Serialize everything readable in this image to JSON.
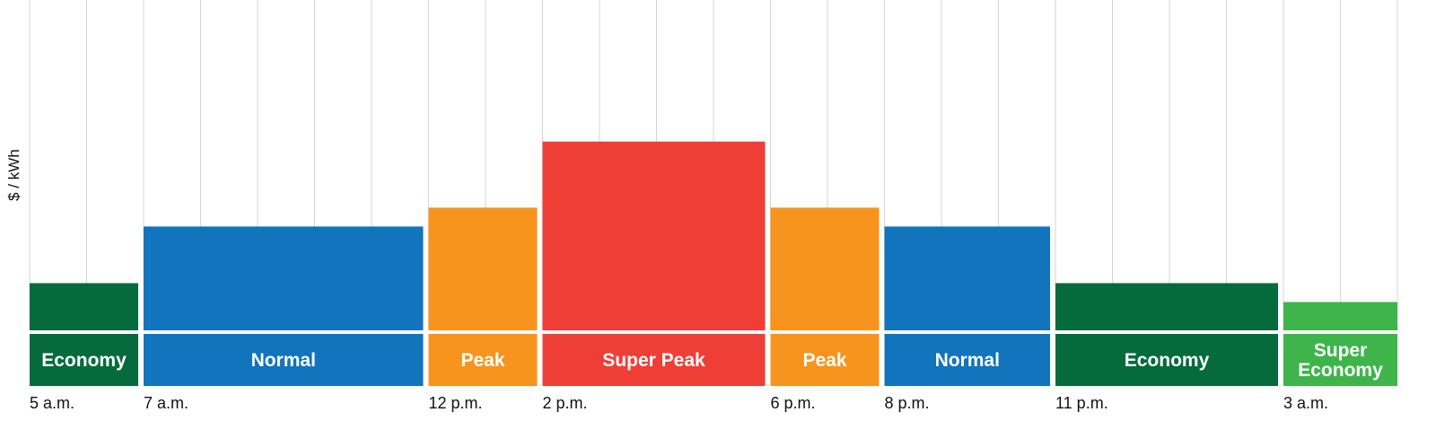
{
  "chart_data": {
    "type": "bar",
    "ylabel": "$ / kWh",
    "x_unit_hours": 1,
    "ylim": [
      0,
      7
    ],
    "grid": true,
    "periods": [
      {
        "label": "Economy",
        "start": "5 a.m.",
        "duration_hours": 2,
        "value": 1.0,
        "color": "#066B3C"
      },
      {
        "label": "Normal",
        "start": "7 a.m.",
        "duration_hours": 5,
        "value": 2.2,
        "color": "#1174BD"
      },
      {
        "label": "Peak",
        "start": "12 p.m.",
        "duration_hours": 2,
        "value": 2.6,
        "color": "#F7941E"
      },
      {
        "label": "Super Peak",
        "start": "2 p.m.",
        "duration_hours": 4,
        "value": 4.0,
        "color": "#EF3E36"
      },
      {
        "label": "Peak",
        "start": "6 p.m.",
        "duration_hours": 2,
        "value": 2.6,
        "color": "#F7941E"
      },
      {
        "label": "Normal",
        "start": "8 p.m.",
        "duration_hours": 3,
        "value": 2.2,
        "color": "#1174BD"
      },
      {
        "label": "Economy",
        "start": "11 p.m.",
        "duration_hours": 4,
        "value": 1.0,
        "color": "#066B3C"
      },
      {
        "label": "Super Economy",
        "start": "3 a.m.",
        "duration_hours": 2,
        "value": 0.6,
        "color": "#3DB54A"
      }
    ]
  }
}
